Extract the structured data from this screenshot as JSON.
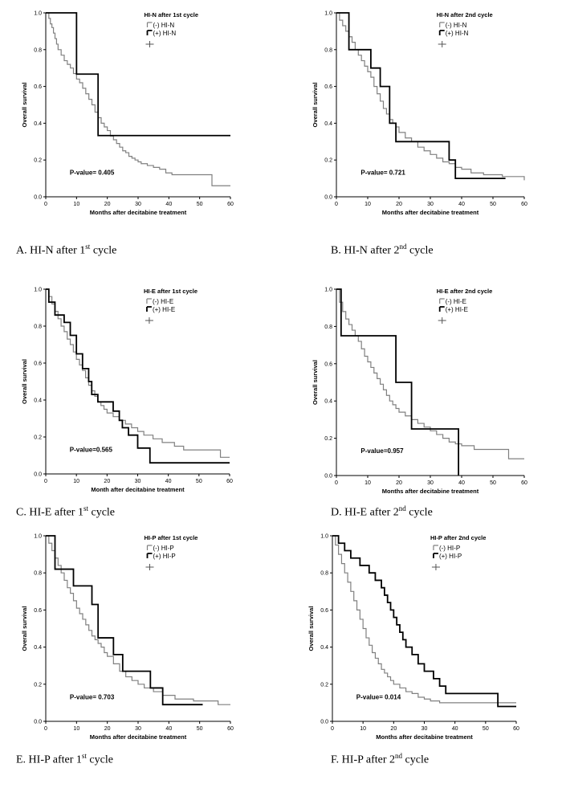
{
  "figure": {
    "panels": [
      {
        "caption_prefix": "A. HI-N after 1",
        "caption_sup": "st",
        "caption_suffix": " cycle"
      },
      {
        "caption_prefix": "B. HI-N after 2",
        "caption_sup": "nd",
        "caption_suffix": " cycle"
      },
      {
        "caption_prefix": "C. HI-E after 1",
        "caption_sup": "st",
        "caption_suffix": " cycle"
      },
      {
        "caption_prefix": "D. HI-E after 2",
        "caption_sup": "nd",
        "caption_suffix": " cycle"
      },
      {
        "caption_prefix": "E. HI-P after 1",
        "caption_sup": "st",
        "caption_suffix": " cycle"
      },
      {
        "caption_prefix": "F. HI-P after 2",
        "caption_sup": "nd",
        "caption_suffix": " cycle"
      }
    ]
  },
  "colors": {
    "negative": "#808080",
    "positive": "#000000"
  },
  "chart_data": [
    {
      "type": "line",
      "step": true,
      "legend_title": "HI-N after 1st cycle",
      "xlabel": "Months after decitabine treatment",
      "ylabel": "Overall survival",
      "annotation": "P-value= 0.405",
      "xlim": [
        0,
        60
      ],
      "ylim": [
        0,
        1.0
      ],
      "xticks": [
        0,
        10,
        20,
        30,
        40,
        50,
        60
      ],
      "yticks": [
        0.0,
        0.2,
        0.4,
        0.6,
        0.8,
        1.0
      ],
      "legend_placement": "top-right",
      "series": [
        {
          "name": "(-) HI-N",
          "x": [
            0,
            1,
            1.5,
            2,
            2.5,
            3,
            3.5,
            4,
            5,
            6,
            7,
            8,
            9,
            10,
            11,
            12,
            13,
            14,
            15,
            16,
            17,
            18,
            19,
            20,
            21,
            22,
            23,
            24,
            25,
            26,
            27,
            28,
            29,
            30,
            31,
            33,
            35,
            37,
            39,
            41,
            43,
            45,
            54,
            60
          ],
          "y": [
            1.0,
            0.97,
            0.94,
            0.92,
            0.89,
            0.86,
            0.83,
            0.8,
            0.77,
            0.74,
            0.72,
            0.7,
            0.67,
            0.64,
            0.62,
            0.59,
            0.56,
            0.53,
            0.5,
            0.46,
            0.43,
            0.4,
            0.38,
            0.36,
            0.33,
            0.31,
            0.29,
            0.27,
            0.25,
            0.24,
            0.22,
            0.21,
            0.2,
            0.19,
            0.18,
            0.17,
            0.16,
            0.15,
            0.13,
            0.12,
            0.12,
            0.12,
            0.06,
            0.06
          ]
        },
        {
          "name": "(+) HI-N",
          "x": [
            0,
            10,
            17,
            60
          ],
          "y": [
            1.0,
            0.667,
            0.333,
            0.333
          ]
        }
      ]
    },
    {
      "type": "line",
      "step": true,
      "legend_title": "HI-N after 2nd cycle",
      "xlabel": "Months after decitabine treatment",
      "ylabel": "Overall survival",
      "annotation": "P-value= 0.721",
      "xlim": [
        0,
        60
      ],
      "ylim": [
        0,
        1.0
      ],
      "xticks": [
        0,
        10,
        20,
        30,
        40,
        50,
        60
      ],
      "yticks": [
        0.0,
        0.2,
        0.4,
        0.6,
        0.8,
        1.0
      ],
      "legend_placement": "top-right",
      "series": [
        {
          "name": "(-) HI-N",
          "x": [
            0,
            1,
            2,
            3,
            4,
            5,
            6,
            7,
            8,
            9,
            10,
            11,
            12,
            13,
            14,
            15,
            16,
            17,
            18,
            19,
            20,
            22,
            24,
            26,
            28,
            30,
            32,
            34,
            36,
            38,
            40,
            43,
            47,
            53,
            60
          ],
          "y": [
            1.0,
            0.96,
            0.93,
            0.9,
            0.87,
            0.84,
            0.8,
            0.77,
            0.74,
            0.71,
            0.68,
            0.65,
            0.6,
            0.56,
            0.52,
            0.48,
            0.45,
            0.42,
            0.4,
            0.38,
            0.35,
            0.32,
            0.3,
            0.27,
            0.25,
            0.23,
            0.21,
            0.19,
            0.18,
            0.16,
            0.15,
            0.13,
            0.12,
            0.11,
            0.09
          ]
        },
        {
          "name": "(+) HI-N",
          "x": [
            0,
            4,
            11,
            14,
            17,
            19,
            22,
            36,
            38,
            54
          ],
          "y": [
            1.0,
            0.8,
            0.7,
            0.6,
            0.4,
            0.3,
            0.3,
            0.2,
            0.1,
            0.1
          ]
        }
      ]
    },
    {
      "type": "line",
      "step": true,
      "legend_title": "HI-E after 1st cycle",
      "xlabel": "Month after decitabine treatment",
      "ylabel": "Overall survival",
      "annotation": "P-value=0.565",
      "xlim": [
        0,
        60
      ],
      "ylim": [
        0,
        1.0
      ],
      "xticks": [
        0,
        10,
        20,
        30,
        40,
        50,
        60
      ],
      "yticks": [
        0.0,
        0.2,
        0.4,
        0.6,
        0.8,
        1.0
      ],
      "legend_placement": "top-right",
      "series": [
        {
          "name": "(-) HI-E",
          "x": [
            0,
            1,
            2,
            3,
            4,
            5,
            6,
            7,
            8,
            9,
            10,
            11,
            12,
            13,
            14,
            15,
            16,
            17,
            18,
            19,
            20,
            22,
            24,
            26,
            28,
            30,
            32,
            35,
            38,
            42,
            45,
            48,
            57,
            60
          ],
          "y": [
            1.0,
            0.96,
            0.92,
            0.88,
            0.84,
            0.8,
            0.77,
            0.73,
            0.7,
            0.66,
            0.62,
            0.59,
            0.56,
            0.52,
            0.48,
            0.45,
            0.42,
            0.39,
            0.37,
            0.35,
            0.33,
            0.31,
            0.29,
            0.27,
            0.25,
            0.23,
            0.21,
            0.19,
            0.17,
            0.15,
            0.13,
            0.13,
            0.09,
            0.09
          ]
        },
        {
          "name": "(+) HI-E",
          "x": [
            0,
            1,
            3,
            6,
            8,
            10,
            12,
            14,
            15,
            17,
            22,
            24,
            25,
            27,
            30,
            34,
            60
          ],
          "y": [
            1.0,
            0.93,
            0.86,
            0.82,
            0.75,
            0.65,
            0.57,
            0.5,
            0.43,
            0.39,
            0.34,
            0.29,
            0.25,
            0.21,
            0.14,
            0.06,
            0.06
          ]
        }
      ]
    },
    {
      "type": "line",
      "step": true,
      "legend_title": "HI-E after 2nd cycle",
      "xlabel": "Months after decitabine treatment",
      "ylabel": "Overall survival",
      "annotation": "P-value=0.957",
      "xlim": [
        0,
        60
      ],
      "ylim": [
        0,
        1.0
      ],
      "xticks": [
        0,
        10,
        20,
        30,
        40,
        50,
        60
      ],
      "yticks": [
        0.0,
        0.2,
        0.4,
        0.6,
        0.8,
        1.0
      ],
      "legend_placement": "top-right",
      "series": [
        {
          "name": "(-) HI-E",
          "x": [
            0,
            1,
            2,
            3,
            4,
            5,
            6,
            7,
            8,
            9,
            10,
            11,
            12,
            13,
            14,
            15,
            16,
            17,
            18,
            19,
            20,
            22,
            24,
            26,
            28,
            30,
            32,
            34,
            36,
            38,
            40,
            44,
            48,
            55,
            60
          ],
          "y": [
            1.0,
            0.93,
            0.88,
            0.84,
            0.81,
            0.78,
            0.75,
            0.72,
            0.68,
            0.64,
            0.61,
            0.58,
            0.55,
            0.52,
            0.49,
            0.46,
            0.43,
            0.4,
            0.38,
            0.36,
            0.34,
            0.32,
            0.3,
            0.28,
            0.26,
            0.24,
            0.22,
            0.2,
            0.18,
            0.17,
            0.16,
            0.14,
            0.14,
            0.09,
            0.09
          ]
        },
        {
          "name": "(+) HI-E",
          "x": [
            0,
            1.5,
            19,
            24,
            39
          ],
          "y": [
            1.0,
            0.75,
            0.5,
            0.25,
            0.0
          ]
        }
      ]
    },
    {
      "type": "line",
      "step": true,
      "legend_title": "HI-P after 1st cycle",
      "xlabel": "Months after decitabine treatment",
      "ylabel": "Overall survival",
      "annotation": "P-value= 0.703",
      "xlim": [
        0,
        60
      ],
      "ylim": [
        0,
        1.0
      ],
      "xticks": [
        0,
        10,
        20,
        30,
        40,
        50,
        60
      ],
      "yticks": [
        0.0,
        0.2,
        0.4,
        0.6,
        0.8,
        1.0
      ],
      "legend_placement": "top-right",
      "series": [
        {
          "name": "(-) HI-P",
          "x": [
            0,
            1,
            2,
            3,
            4,
            5,
            6,
            7,
            8,
            9,
            10,
            11,
            12,
            13,
            14,
            15,
            16,
            17,
            18,
            19,
            20,
            22,
            24,
            26,
            28,
            30,
            32,
            35,
            38,
            42,
            45,
            48,
            56,
            60
          ],
          "y": [
            1.0,
            0.96,
            0.92,
            0.88,
            0.84,
            0.8,
            0.76,
            0.72,
            0.69,
            0.65,
            0.61,
            0.58,
            0.55,
            0.52,
            0.49,
            0.46,
            0.44,
            0.42,
            0.4,
            0.37,
            0.35,
            0.31,
            0.27,
            0.24,
            0.22,
            0.2,
            0.18,
            0.16,
            0.14,
            0.12,
            0.12,
            0.11,
            0.09,
            0.09
          ]
        },
        {
          "name": "(+) HI-P",
          "x": [
            0,
            3,
            9,
            15,
            17,
            22,
            25,
            34,
            38,
            51
          ],
          "y": [
            1.0,
            0.82,
            0.73,
            0.63,
            0.45,
            0.36,
            0.27,
            0.18,
            0.09,
            0.09
          ]
        }
      ]
    },
    {
      "type": "line",
      "step": true,
      "legend_title": "HI-P after 2nd cycle",
      "xlabel": "Months after decitabine treatment",
      "ylabel": "Overall survival",
      "annotation": "P-value= 0.014",
      "xlim": [
        0,
        60
      ],
      "ylim": [
        0,
        1.0
      ],
      "xticks": [
        0,
        10,
        20,
        30,
        40,
        50,
        60
      ],
      "yticks": [
        0.0,
        0.2,
        0.4,
        0.6,
        0.8,
        1.0
      ],
      "legend_placement": "top-right",
      "series": [
        {
          "name": "(-) HI-P",
          "x": [
            0,
            1,
            2,
            3,
            4,
            5,
            6,
            7,
            8,
            9,
            10,
            11,
            12,
            13,
            14,
            15,
            16,
            17,
            18,
            19,
            20,
            22,
            24,
            26,
            28,
            30,
            32,
            35,
            40,
            44,
            48,
            53,
            57,
            60
          ],
          "y": [
            1.0,
            0.95,
            0.9,
            0.85,
            0.8,
            0.75,
            0.7,
            0.65,
            0.6,
            0.55,
            0.5,
            0.45,
            0.41,
            0.37,
            0.34,
            0.31,
            0.28,
            0.26,
            0.24,
            0.22,
            0.2,
            0.18,
            0.16,
            0.15,
            0.13,
            0.12,
            0.11,
            0.1,
            0.1,
            0.1,
            0.1,
            0.1,
            0.1,
            0.1
          ]
        },
        {
          "name": "(+) HI-P",
          "x": [
            0,
            2,
            4,
            6,
            9,
            12,
            14,
            16,
            17,
            18,
            19,
            20,
            21,
            22,
            23,
            24,
            26,
            28,
            30,
            33,
            35,
            37,
            40,
            54,
            60
          ],
          "y": [
            1.0,
            0.96,
            0.92,
            0.88,
            0.84,
            0.8,
            0.76,
            0.72,
            0.68,
            0.64,
            0.6,
            0.56,
            0.52,
            0.48,
            0.44,
            0.4,
            0.36,
            0.31,
            0.27,
            0.23,
            0.19,
            0.15,
            0.15,
            0.08,
            0.08
          ]
        }
      ]
    }
  ]
}
